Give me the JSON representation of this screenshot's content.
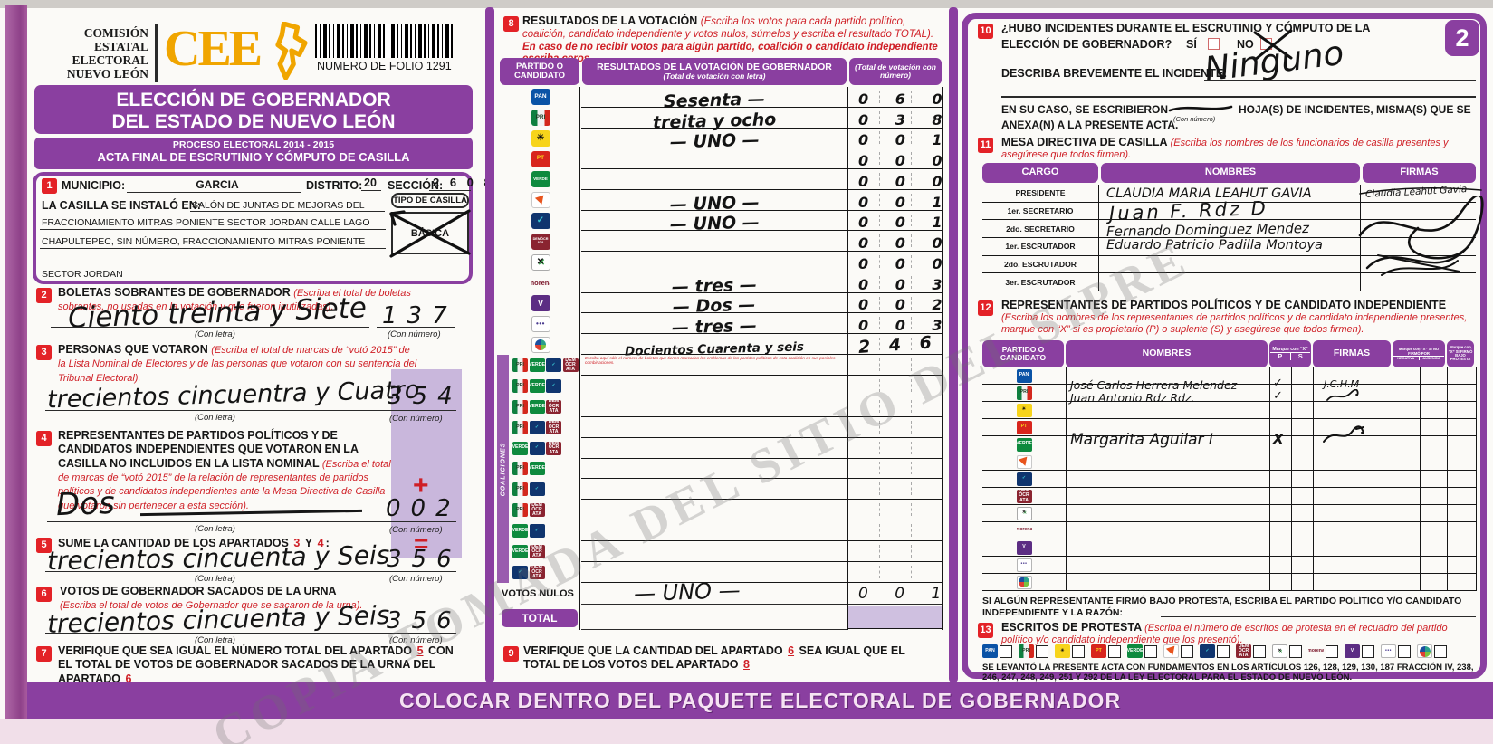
{
  "watermark": "COPIA TOMADA DEL SITIO DEL SIPRE",
  "page_badge": "2",
  "banner": "COLOCAR DENTRO DEL PAQUETE ELECTORAL DE GOBERNADOR",
  "legal": "SE LEVANTÓ LA PRESENTE ACTA CON FUNDAMENTOS EN LOS ARTÍCULOS 126, 128, 129, 130, 187 FRACCIÓN IV, 238, 246, 247, 248, 249, 251 Y 292 DE LA LEY ELECTORAL PARA EL ESTADO DE NUEVO LEÓN.",
  "labels": {
    "con_letra": "(Con letra)",
    "con_numero": "(Con número)"
  },
  "header": {
    "commission": [
      "COMISIÓN",
      "ESTATAL",
      "ELECTORAL",
      "NUEVO LEÓN"
    ],
    "logo_text": "CEE",
    "folio": "NUMERO DE FOLIO 1291"
  },
  "title": {
    "line1": "ELECCIÓN DE GOBERNADOR",
    "line2": "DEL ESTADO DE NUEVO LEÓN",
    "process": "PROCESO ELECTORAL  2014 - 2015",
    "acta": "ACTA FINAL DE ESCRUTINIO Y CÓMPUTO DE CASILLA"
  },
  "section1": {
    "num": "1",
    "municipio_label": "MUNICIPIO:",
    "municipio": "GARCIA",
    "distrito_label": "DISTRITO:",
    "distrito": "20",
    "seccion_label": "SECCIÓN:",
    "seccion": "2 6 0 8",
    "instalada_label": "LA CASILLA SE INSTALÓ EN:",
    "lugar1": "SALÓN DE JUNTAS DE MEJORAS DEL",
    "lugar2": "FRACCIONAMIENTO MITRAS PONIENTE SECTOR JORDAN CALLE LAGO",
    "lugar3": "CHAPULTEPEC, SIN NÚMERO, FRACCIONAMIENTO MITRAS PONIENTE",
    "lugar4": "SECTOR JORDAN",
    "tipo_label": "TIPO DE CASILLA",
    "tipo": "BÁSICA"
  },
  "section2": {
    "num": "2",
    "title": "BOLETAS SOBRANTES DE GOBERNADOR ",
    "instr": "(Escriba el total de boletas sobrantes, no usadas en la votación y que fueron inutilizadas).",
    "word": "Ciento treinta y Siete",
    "number": "137"
  },
  "section3": {
    "num": "3",
    "title": "PERSONAS QUE VOTARON ",
    "instr": "(Escriba el total de marcas de “votó 2015” de la Lista Nominal de Electores y de las personas que votaron con su sentencia del Tribunal Electoral).",
    "word": "trecientos cincuentra y Cuatro",
    "number": "354"
  },
  "section4": {
    "num": "4",
    "title": "REPRESENTANTES DE PARTIDOS POLÍTICOS Y DE CANDIDATOS INDEPENDIENTES QUE VOTARON EN LA CASILLA NO INCLUIDOS EN LA LISTA NOMINAL ",
    "instr": "(Escriba el total de marcas de “votó 2015” de la relación de representantes de partidos políticos y de candidatos independientes ante la Mesa Directiva de Casilla que votaron sin pertenecer a esta sección).",
    "word": "Dos",
    "number": "002",
    "plus": "+"
  },
  "section5": {
    "num": "5",
    "t1": "SUME LA CANTIDAD DE LOS APARTADOS",
    "n3": "3",
    "y": "Y",
    "n4": "4",
    "colon": ":",
    "word": "trecientos cincuenta y Seis",
    "number": "356",
    "equals": "="
  },
  "section6": {
    "num": "6",
    "title": "VOTOS DE GOBERNADOR SACADOS DE LA URNA",
    "instr": "(Escriba el total de votos de Gobernador que se sacaron de la urna).",
    "word": "trecientos cincuenta y Seis",
    "number": "356"
  },
  "section7": {
    "num": "7",
    "t1": "VERIFIQUE QUE SEA IGUAL EL NÚMERO TOTAL DEL APARTADO",
    "n5": "5",
    "t2": "CON EL TOTAL DE VOTOS DE GOBERNADOR SACADOS DE LA URNA DEL APARTADO",
    "n6": "6"
  },
  "parties": [
    {
      "id": "pan",
      "glyph": "PAN"
    },
    {
      "id": "pri",
      "glyph": "PRI"
    },
    {
      "id": "prd",
      "glyph": "☀"
    },
    {
      "id": "pt",
      "glyph": "PT"
    },
    {
      "id": "verde",
      "glyph": "VERDE"
    },
    {
      "id": "mc",
      "glyph": ""
    },
    {
      "id": "na",
      "glyph": "✓"
    },
    {
      "id": "pd",
      "glyph": "DEMÓCRATA"
    },
    {
      "id": "cc",
      "glyph": "✕"
    },
    {
      "id": "morena",
      "glyph": "morena"
    },
    {
      "id": "ph",
      "glyph": "V"
    },
    {
      "id": "es",
      "glyph": "•••"
    },
    {
      "id": "indep",
      "glyph": ""
    }
  ],
  "section8": {
    "num": "8",
    "title": "RESULTADOS DE LA VOTACIÓN ",
    "instr": "(Escriba los votos para cada partido político, coalición, candidato independiente y votos nulos, súmelos y escriba el resultado TOTAL).",
    "instr2": "En caso de no recibir votos para algún partido, coalición o candidato independiente escriba ceros.",
    "h_party": "PARTIDO O CANDIDATO",
    "h_result": "RESULTADOS DE LA VOTACIÓN DE GOBERNADOR",
    "h_letra": "(Total de votación con letra)",
    "h_numero": "(Total de votación con número)",
    "coal_label": "COALICIONES",
    "coal_note": "Escriba aquí sólo el número de boletas que tienen marcadas los emblemas de los partidos políticos de esta coalición en sus posibles combinaciones.",
    "rows": [
      {
        "party": "pan",
        "word": "Sesenta —",
        "number": "060"
      },
      {
        "party": "pri",
        "word": "treita y ocho",
        "number": "038"
      },
      {
        "party": "prd",
        "word": "— UNO —",
        "number": "001"
      },
      {
        "party": "pt",
        "word": "",
        "number": "000"
      },
      {
        "party": "verde",
        "word": "",
        "number": "000"
      },
      {
        "party": "mc",
        "word": "— UNO —",
        "number": "001"
      },
      {
        "party": "na",
        "word": "— UNO —",
        "number": "001"
      },
      {
        "party": "pd",
        "word": "",
        "number": "000"
      },
      {
        "party": "cc",
        "word": "",
        "number": "000"
      },
      {
        "party": "morena",
        "word": "— tres —",
        "number": "003"
      },
      {
        "party": "ph",
        "word": "— Dos —",
        "number": "002"
      },
      {
        "party": "es",
        "word": "— tres —",
        "number": "003"
      },
      {
        "party": "indep",
        "word": "Docientos Cuarenta y seis",
        "number": "246"
      }
    ],
    "coalitions": [
      [
        "pri",
        "verde",
        "na",
        "pd"
      ],
      [
        "pri",
        "verde",
        "na"
      ],
      [
        "pri",
        "verde",
        "pd"
      ],
      [
        "pri",
        "na",
        "pd"
      ],
      [
        "verde",
        "na",
        "pd"
      ],
      [
        "pri",
        "verde"
      ],
      [
        "pri",
        "na"
      ],
      [
        "pri",
        "pd"
      ],
      [
        "verde",
        "na"
      ],
      [
        "verde",
        "pd"
      ],
      [
        "na",
        "pd"
      ]
    ],
    "nulos_label": "VOTOS NULOS",
    "nulos_word": "— UNO —",
    "nulos_number": "001",
    "total_label": "TOTAL"
  },
  "section9": {
    "num": "9",
    "t1": "VERIFIQUE QUE LA CANTIDAD DEL APARTADO",
    "n6": "6",
    "t2": "SEA IGUAL QUE EL TOTAL DE LOS VOTOS DEL APARTADO",
    "n8": "8"
  },
  "section10": {
    "num": "10",
    "t1": "¿HUBO INCIDENTES DURANTE EL ESCRUTINIO Y CÓMPUTO DE LA",
    "t2": "ELECCIÓN DE GOBERNADOR?",
    "si": "SÍ",
    "no": "NO",
    "describa": "DESCRIBA BREVEMENTE EL INCIDENTE:",
    "incidente": "Ninguno",
    "encaso": "EN SU CASO, SE ESCRIBIERON",
    "hojas": "HOJA(S) DE INCIDENTES, MISMA(S) QUE SE",
    "anexa": "ANEXA(N) A LA PRESENTE ACTA."
  },
  "section11": {
    "num": "11",
    "title": "MESA DIRECTIVA DE CASILLA ",
    "instr": "(Escriba los nombres de los funcionarios de casilla presentes y asegúrese que todos firmen).",
    "h_cargo": "CARGO",
    "h_nombres": "NOMBRES",
    "h_firmas": "FIRMAS",
    "cargos": [
      "PRESIDENTE",
      "1er. SECRETARIO",
      "2do. SECRETARIO",
      "1er. ESCRUTADOR",
      "2do. ESCRUTADOR",
      "3er. ESCRUTADOR"
    ],
    "nombres": {
      "presidente": "CLAUDIA MARIA LEAHUT GAVIA",
      "secretario1": "Juan F. Rdz D",
      "secretario2": "Fernando Dominguez Mendez",
      "escrutador1": "Eduardo Patricio Padilla Montoya"
    },
    "firma_presidente": "Claudia Leahut Gavia"
  },
  "section12": {
    "num": "12",
    "title": "REPRESENTANTES DE PARTIDOS POLÍTICOS Y DE CANDIDATO INDEPENDIENTE",
    "instr": "(Escriba los nombres de los representantes de partidos políticos y de candidato independiente presentes, marque con “X” si es propietario (P) o suplente (S) y asegúrese que todos firmen).",
    "h_party": "PARTIDO O CANDIDATO",
    "h_names": "NOMBRES",
    "h_marque": "Marque con “X”",
    "h_p": "P",
    "h_s": "S",
    "h_firmas": "FIRMAS",
    "h_nofirmo": "Marque con “X” SI NO FIRMÓ POR",
    "h_negativa": "NEGATIVA",
    "h_ausencia": "AUSENCIA",
    "h_protesta": "Marque con “X” SI FIRMÓ BAJO PROTESTA",
    "pri_name1": "José Carlos Herrera Melendez",
    "pri_name2": "Juan Antonio Rdz Rdz.",
    "pri_check1": "✓",
    "pri_check2": "✓",
    "pri_firma": "J.C.H.M",
    "verde_name": "Margarita Aguilar I",
    "verde_mark": "X",
    "protest_note": "SI ALGÚN REPRESENTANTE FIRMÓ BAJO PROTESTA, ESCRIBA EL PARTIDO POLÍTICO Y/O CANDIDATO INDEPENDIENTE Y LA RAZÓN:"
  },
  "section13": {
    "num": "13",
    "title": "ESCRITOS DE PROTESTA ",
    "instr": "(Escriba el número de escritos de protesta en el recuadro del partido político y/o candidato independiente que los presentó)."
  }
}
